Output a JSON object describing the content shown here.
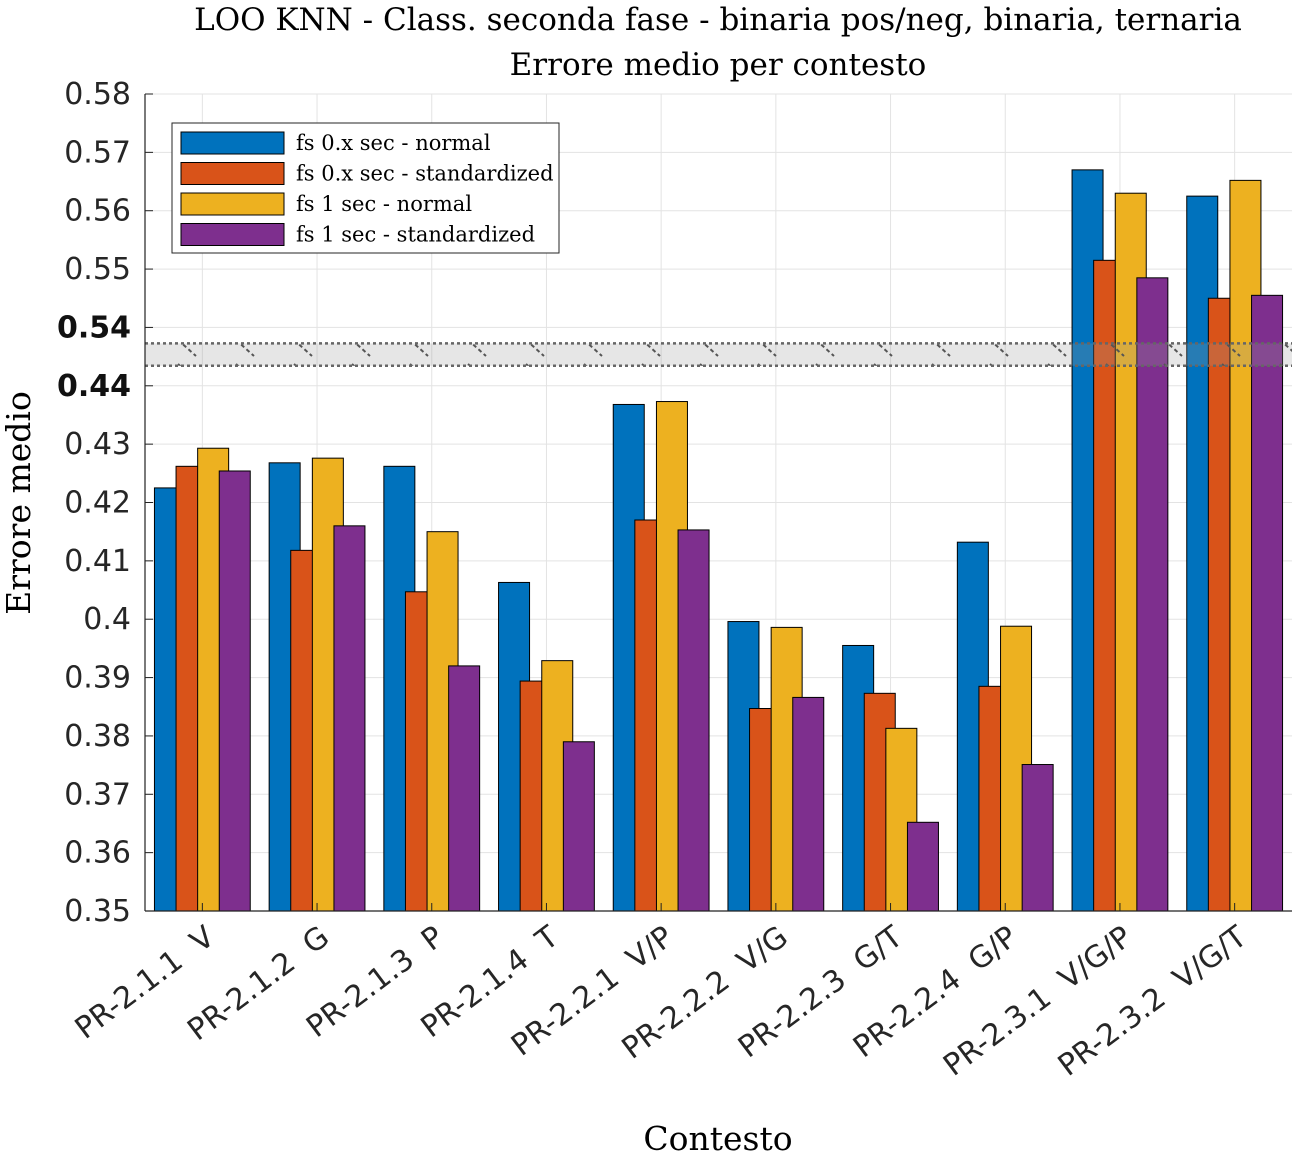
{
  "chart_data": {
    "type": "bar",
    "title": "LOO KNN - Class. seconda fase - binaria pos/neg, binaria, ternaria",
    "subtitle": "Errore medio per contesto",
    "xlabel": "Contesto",
    "ylabel": "Errore medio",
    "categories": [
      "PR-2.1.1  V",
      "PR-2.1.2  G",
      "PR-2.1.3  P",
      "PR-2.1.4  T",
      "PR-2.2.1  V/P",
      "PR-2.2.2  V/G",
      "PR-2.2.3  G/T",
      "PR-2.2.4  G/P",
      "PR-2.3.1  V/G/P",
      "PR-2.3.2  V/G/T"
    ],
    "axis_break": {
      "between": [
        0.44,
        0.54
      ],
      "note": "broken y-axis: values below the break are on the 0.35–0.44 scale, values above on the 0.54–0.58 scale"
    },
    "yticks": [
      "0.35",
      "0.36",
      "0.37",
      "0.38",
      "0.39",
      "0.4",
      "0.41",
      "0.42",
      "0.43",
      "0.44",
      "0.54",
      "0.55",
      "0.56",
      "0.57",
      "0.58"
    ],
    "grid": true,
    "legend_position": "top-left",
    "series": [
      {
        "name": "fs 0.x sec - normal",
        "color": "#0072BD",
        "values": [
          0.4225,
          0.4268,
          0.4262,
          0.4063,
          0.4368,
          0.3996,
          0.3955,
          0.4132,
          0.567,
          0.5625
        ]
      },
      {
        "name": "fs 0.x sec - standardized",
        "color": "#D95319",
        "values": [
          0.4262,
          0.4118,
          0.4047,
          0.3894,
          0.417,
          0.3847,
          0.3873,
          0.3885,
          0.5515,
          0.545
        ]
      },
      {
        "name": "fs 1 sec - normal",
        "color": "#EDB120",
        "values": [
          0.4293,
          0.4276,
          0.415,
          0.3929,
          0.4373,
          0.3986,
          0.3813,
          0.3988,
          0.563,
          0.5652
        ]
      },
      {
        "name": "fs 1 sec - standardized",
        "color": "#7E2F8E",
        "values": [
          0.4254,
          0.416,
          0.392,
          0.379,
          0.4153,
          0.3866,
          0.3652,
          0.3751,
          0.5485,
          0.5455
        ]
      }
    ]
  }
}
